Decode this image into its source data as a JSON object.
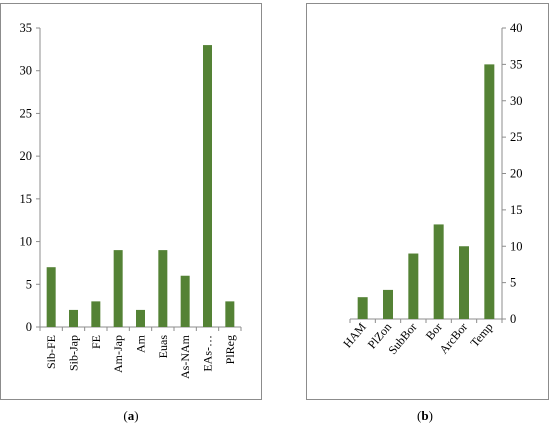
{
  "colors": {
    "bar": "#548235",
    "axis": "#8c8c8c",
    "text": "#000000"
  },
  "chart_data": [
    {
      "type": "bar",
      "caption": "a",
      "categories": [
        "Sib-FE",
        "Sib-Jap",
        "FE",
        "Am-Jap",
        "Am",
        "Euas",
        "As-NAm",
        "EAs-…",
        "PlReg"
      ],
      "values": [
        7,
        2,
        3,
        9,
        2,
        9,
        6,
        33,
        3
      ],
      "ylim": [
        0,
        35
      ],
      "yticks": [
        0,
        5,
        10,
        15,
        20,
        25,
        30,
        35
      ],
      "yaxis_side": "left",
      "grid": false,
      "legend": "none"
    },
    {
      "type": "bar",
      "caption": "b",
      "categories": [
        "HAM",
        "PlZon",
        "SubBor",
        "Bor",
        "ArcBor",
        "Temp"
      ],
      "values": [
        3,
        4,
        9,
        13,
        10,
        35
      ],
      "ylim": [
        0,
        40
      ],
      "yticks": [
        0,
        5,
        10,
        15,
        20,
        25,
        30,
        35,
        40
      ],
      "yaxis_side": "right",
      "grid": false,
      "legend": "none"
    }
  ]
}
